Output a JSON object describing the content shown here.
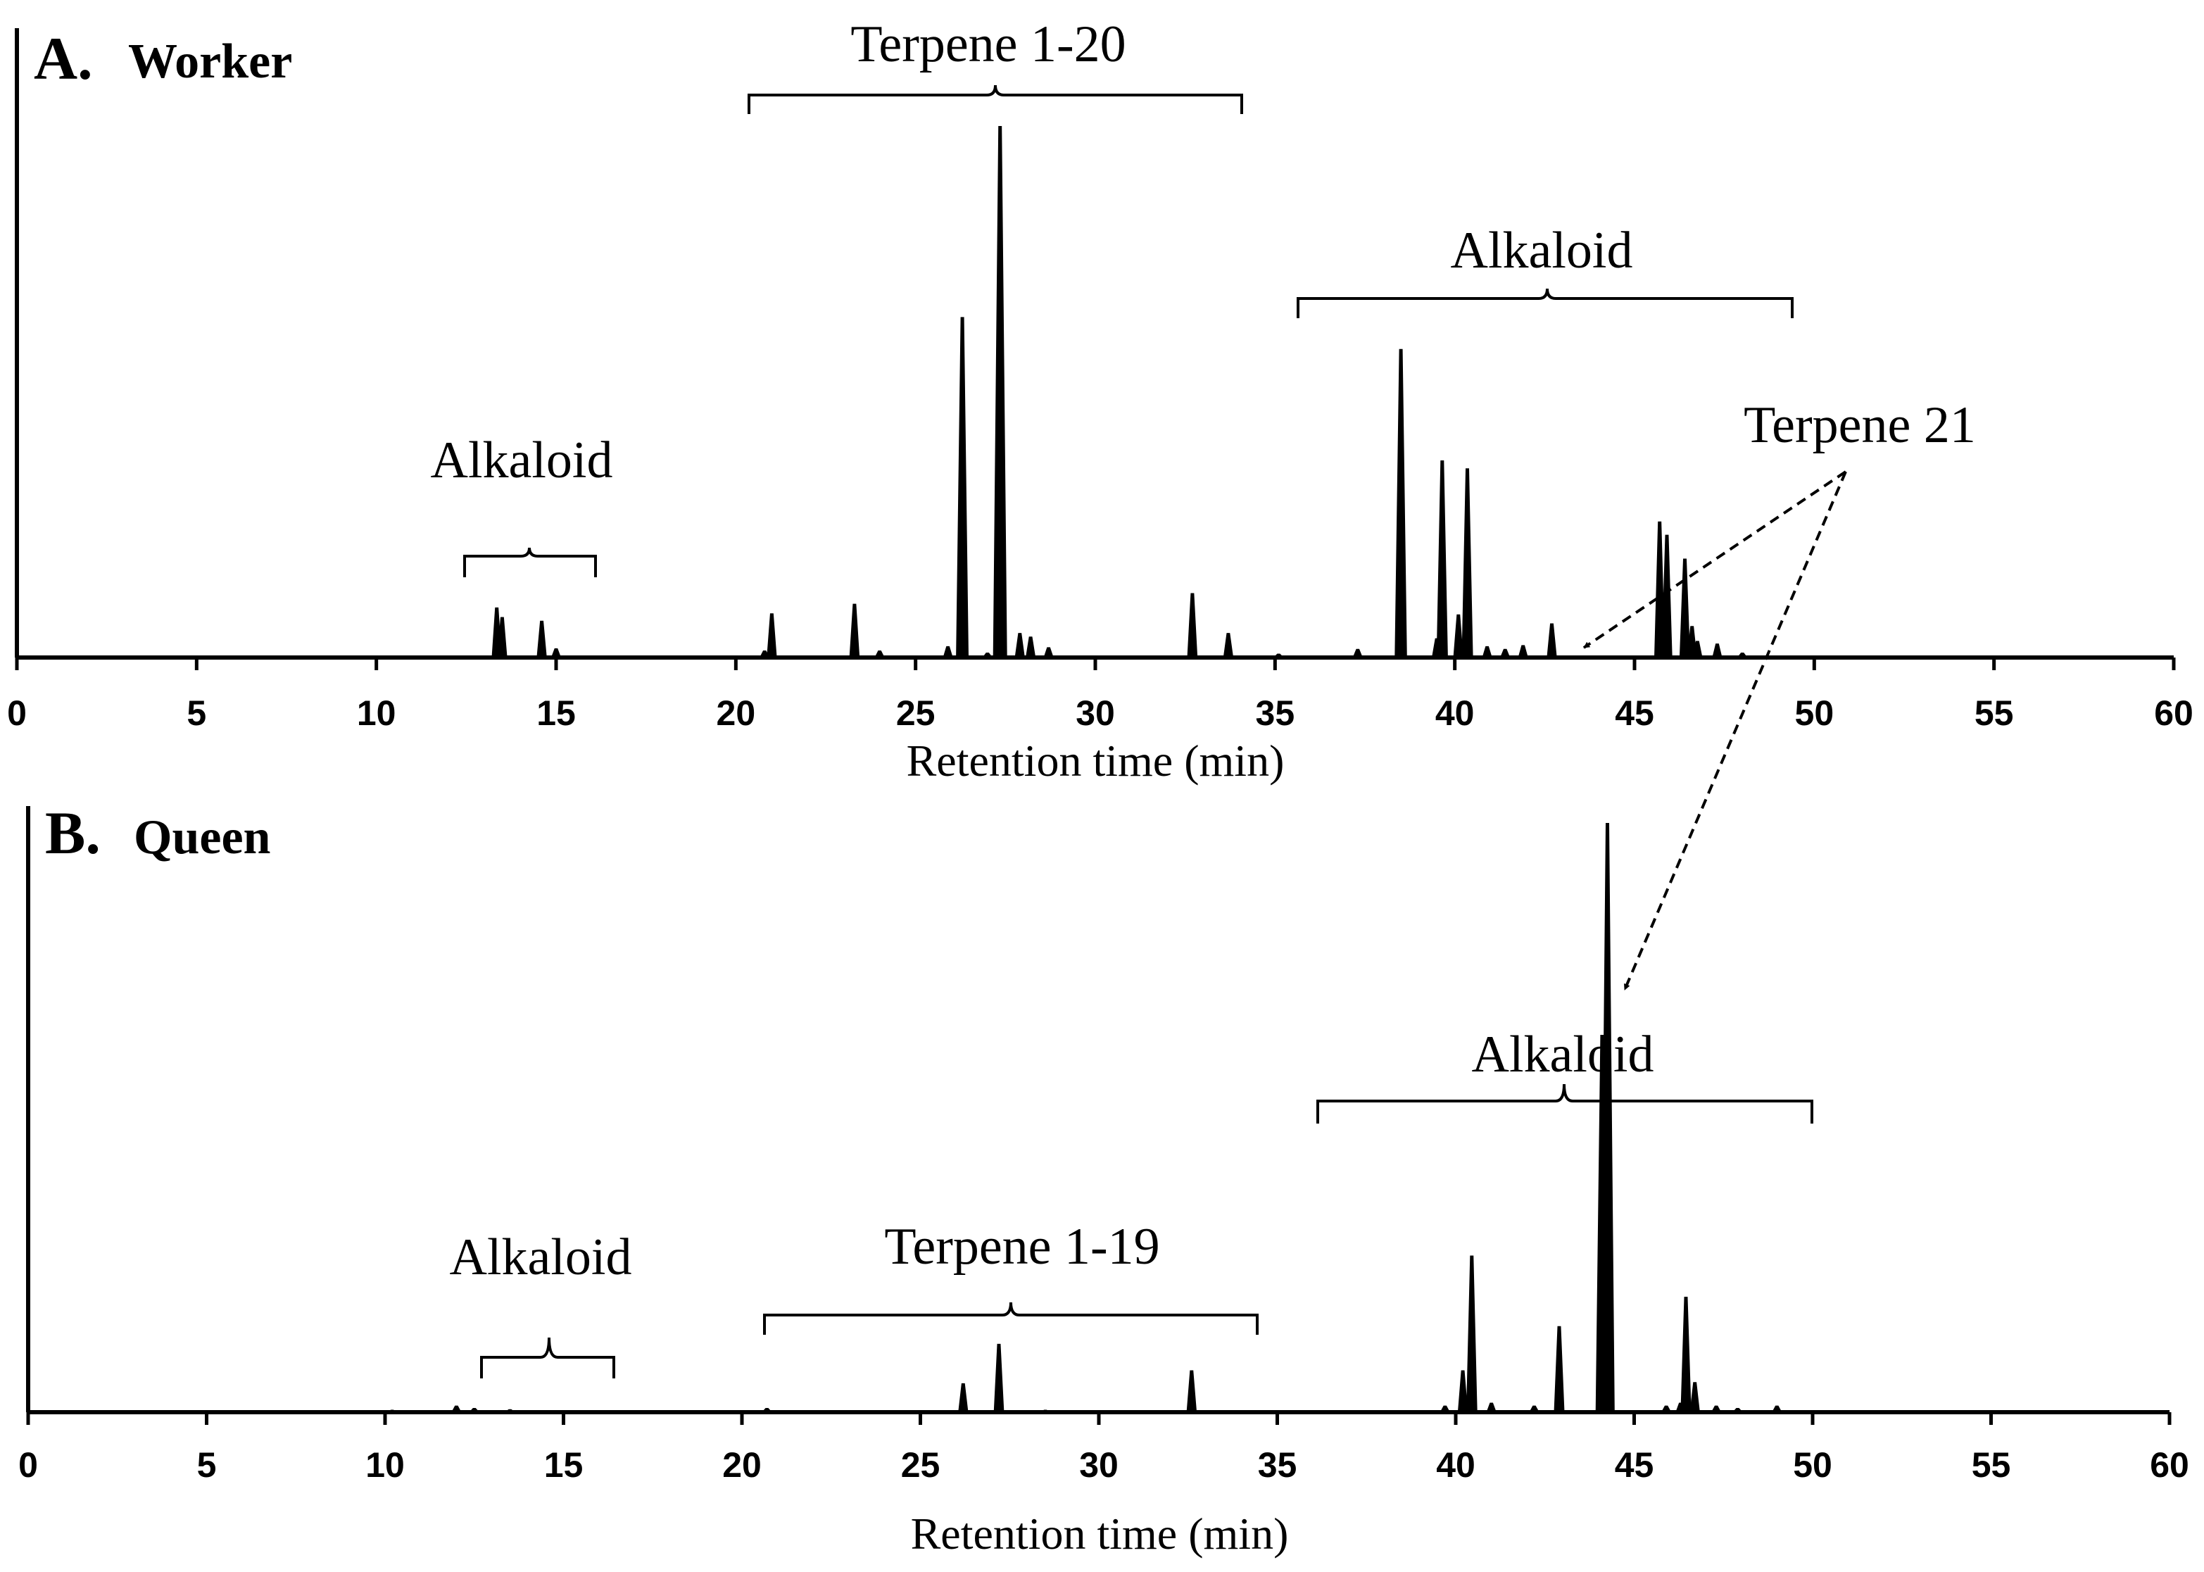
{
  "chart_data": [
    {
      "type": "line",
      "panel_letter": "A",
      "panel_name": "Worker",
      "xlabel": "Retention time (min)",
      "ylabel": "",
      "xlim": [
        0,
        60
      ],
      "ylim": [
        0,
        100
      ],
      "xticks": [
        "0",
        "5",
        "10",
        "15",
        "20",
        "25",
        "30",
        "35",
        "40",
        "45",
        "50",
        "55",
        "60"
      ],
      "peaks": [
        {
          "x": 13.35,
          "y": 9.3
        },
        {
          "x": 13.5,
          "y": 7.5
        },
        {
          "x": 14.6,
          "y": 6.8
        },
        {
          "x": 15.0,
          "y": 1.6
        },
        {
          "x": 20.8,
          "y": 1.2
        },
        {
          "x": 21.0,
          "y": 8.2
        },
        {
          "x": 23.3,
          "y": 10.0
        },
        {
          "x": 24.0,
          "y": 1.2
        },
        {
          "x": 25.9,
          "y": 2.0
        },
        {
          "x": 26.3,
          "y": 64.0
        },
        {
          "x": 27.0,
          "y": 0.8
        },
        {
          "x": 27.35,
          "y": 100.0
        },
        {
          "x": 27.9,
          "y": 4.5
        },
        {
          "x": 28.2,
          "y": 3.8
        },
        {
          "x": 28.7,
          "y": 1.8
        },
        {
          "x": 32.7,
          "y": 12.0
        },
        {
          "x": 33.7,
          "y": 4.5
        },
        {
          "x": 35.1,
          "y": 0.6
        },
        {
          "x": 37.3,
          "y": 1.5
        },
        {
          "x": 38.5,
          "y": 58.0
        },
        {
          "x": 39.5,
          "y": 3.5
        },
        {
          "x": 39.65,
          "y": 37.0
        },
        {
          "x": 40.1,
          "y": 8.0
        },
        {
          "x": 40.35,
          "y": 35.5
        },
        {
          "x": 40.9,
          "y": 2.0
        },
        {
          "x": 41.4,
          "y": 1.5
        },
        {
          "x": 41.9,
          "y": 2.2
        },
        {
          "x": 42.7,
          "y": 6.3
        },
        {
          "x": 45.7,
          "y": 25.5
        },
        {
          "x": 45.9,
          "y": 23.0
        },
        {
          "x": 46.4,
          "y": 18.5
        },
        {
          "x": 46.6,
          "y": 5.8
        },
        {
          "x": 46.75,
          "y": 3.0
        },
        {
          "x": 47.3,
          "y": 2.5
        },
        {
          "x": 48.0,
          "y": 0.8
        }
      ],
      "annotations": [
        {
          "label": "Alkaloid",
          "range": [
            12.4,
            16.1
          ]
        },
        {
          "label": "Terpene 1-20",
          "range": [
            20.4,
            34.1
          ]
        },
        {
          "label": "Alkaloid",
          "range": [
            35.6,
            49.4
          ]
        },
        {
          "label": "Terpene 21",
          "points_to": [
            43.5,
            46.1
          ]
        }
      ]
    },
    {
      "type": "line",
      "panel_letter": "B",
      "panel_name": "Queen",
      "xlabel": "Retention time (min)",
      "ylabel": "",
      "xlim": [
        0,
        60
      ],
      "ylim": [
        0,
        100
      ],
      "xticks": [
        "0",
        "5",
        "10",
        "15",
        "20",
        "25",
        "30",
        "35",
        "40",
        "45",
        "50",
        "55",
        "60"
      ],
      "peaks": [
        {
          "x": 10.2,
          "y": 0.3
        },
        {
          "x": 12.0,
          "y": 1.0
        },
        {
          "x": 12.5,
          "y": 0.6
        },
        {
          "x": 13.5,
          "y": 0.4
        },
        {
          "x": 20.7,
          "y": 0.6
        },
        {
          "x": 26.2,
          "y": 4.8
        },
        {
          "x": 27.2,
          "y": 11.5
        },
        {
          "x": 28.5,
          "y": 0.3
        },
        {
          "x": 32.6,
          "y": 7.0
        },
        {
          "x": 39.7,
          "y": 1.0
        },
        {
          "x": 40.2,
          "y": 7.0
        },
        {
          "x": 40.45,
          "y": 26.5
        },
        {
          "x": 41.0,
          "y": 1.5
        },
        {
          "x": 42.2,
          "y": 1.0
        },
        {
          "x": 42.9,
          "y": 14.5
        },
        {
          "x": 44.1,
          "y": 64.0
        },
        {
          "x": 44.25,
          "y": 100.0
        },
        {
          "x": 45.9,
          "y": 1.0
        },
        {
          "x": 46.3,
          "y": 1.5
        },
        {
          "x": 46.45,
          "y": 19.5
        },
        {
          "x": 46.7,
          "y": 5.0
        },
        {
          "x": 47.3,
          "y": 1.0
        },
        {
          "x": 47.9,
          "y": 0.6
        },
        {
          "x": 49.0,
          "y": 1.0
        }
      ],
      "annotations": [
        {
          "label": "Alkaloid",
          "range": [
            12.8,
            16.4
          ]
        },
        {
          "label": "Terpene 1-19",
          "range": [
            20.6,
            34.4
          ]
        },
        {
          "label": "Alkaloid",
          "range": [
            36.2,
            50.0
          ]
        },
        {
          "label": "Terpene 21",
          "points_to": [
            44.9
          ]
        }
      ]
    }
  ]
}
